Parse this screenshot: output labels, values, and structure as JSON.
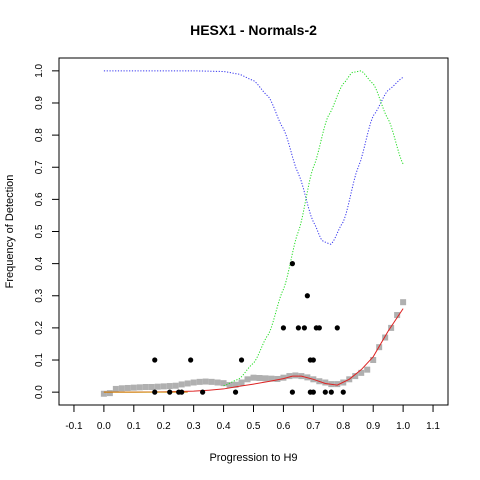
{
  "chart_data": {
    "type": "scatter",
    "title": "HESX1 - Normals-2",
    "xlabel": "Progression to H9",
    "ylabel": "Frequency of Detection",
    "xlim": [
      -0.15,
      1.15
    ],
    "ylim": [
      -0.04,
      1.04
    ],
    "xticks": [
      -0.1,
      0.0,
      0.1,
      0.2,
      0.3,
      0.4,
      0.5,
      0.6,
      0.7,
      0.8,
      0.9,
      1.0,
      1.1
    ],
    "xtick_labels": [
      "-0.1",
      "0.0",
      "0.1",
      "0.2",
      "0.3",
      "0.4",
      "0.5",
      "0.6",
      "0.7",
      "0.8",
      "0.9",
      "1.0",
      "1.1"
    ],
    "yticks": [
      0.0,
      0.1,
      0.2,
      0.3,
      0.4,
      0.5,
      0.6,
      0.7,
      0.8,
      0.9,
      1.0
    ],
    "ytick_labels": [
      "0.0",
      "0.1",
      "0.2",
      "0.3",
      "0.4",
      "0.5",
      "0.6",
      "0.7",
      "0.8",
      "0.9",
      "1.0"
    ],
    "grid": false,
    "legend": "none",
    "colors": {
      "points": "#000000",
      "smooth_points": "#b0b0b0",
      "fit_line": "#dd2222",
      "blue_curve": "#3333ee",
      "green_curve": "#22dd22",
      "orange_segment": "#cc8800"
    },
    "series": [
      {
        "kind": "points",
        "x": [
          0.17,
          0.17,
          0.22,
          0.25,
          0.26,
          0.29,
          0.33,
          0.44,
          0.46,
          0.6,
          0.63,
          0.63,
          0.65,
          0.67,
          0.68,
          0.69,
          0.69,
          0.7,
          0.7,
          0.71,
          0.72,
          0.74,
          0.76,
          0.78,
          0.8
        ],
        "y": [
          0.1,
          0.0,
          0.0,
          0.0,
          0.0,
          0.1,
          0.0,
          0.0,
          0.1,
          0.2,
          0.0,
          0.4,
          0.2,
          0.2,
          0.3,
          0.1,
          0.0,
          0.1,
          0.0,
          0.2,
          0.2,
          0.0,
          0.0,
          0.2,
          0.0
        ]
      },
      {
        "kind": "smooth_points",
        "x": [
          0.0,
          0.02,
          0.04,
          0.06,
          0.08,
          0.1,
          0.12,
          0.14,
          0.16,
          0.18,
          0.2,
          0.22,
          0.24,
          0.26,
          0.28,
          0.3,
          0.32,
          0.34,
          0.36,
          0.38,
          0.4,
          0.42,
          0.44,
          0.46,
          0.48,
          0.5,
          0.52,
          0.54,
          0.56,
          0.58,
          0.6,
          0.62,
          0.64,
          0.66,
          0.68,
          0.7,
          0.72,
          0.74,
          0.76,
          0.78,
          0.8,
          0.82,
          0.84,
          0.86,
          0.88,
          0.9,
          0.92,
          0.94,
          0.96,
          0.98,
          1.0
        ],
        "y": [
          -0.005,
          -0.003,
          0.01,
          0.012,
          0.013,
          0.014,
          0.015,
          0.016,
          0.016,
          0.017,
          0.018,
          0.019,
          0.02,
          0.024,
          0.027,
          0.03,
          0.032,
          0.033,
          0.032,
          0.03,
          0.028,
          0.022,
          0.023,
          0.03,
          0.04,
          0.045,
          0.044,
          0.043,
          0.042,
          0.041,
          0.045,
          0.05,
          0.052,
          0.05,
          0.046,
          0.04,
          0.034,
          0.03,
          0.025,
          0.025,
          0.03,
          0.04,
          0.05,
          0.06,
          0.07,
          0.1,
          0.14,
          0.17,
          0.2,
          0.24,
          0.28
        ]
      },
      {
        "kind": "fit_line",
        "x": [
          0.0,
          0.1,
          0.2,
          0.3,
          0.35,
          0.4,
          0.45,
          0.5,
          0.55,
          0.6,
          0.63,
          0.66,
          0.7,
          0.74,
          0.78,
          0.82,
          0.86,
          0.9,
          0.95,
          1.0
        ],
        "y": [
          0.0,
          0.0,
          0.001,
          0.003,
          0.006,
          0.01,
          0.018,
          0.025,
          0.033,
          0.042,
          0.05,
          0.05,
          0.04,
          0.027,
          0.022,
          0.04,
          0.07,
          0.11,
          0.19,
          0.26
        ]
      },
      {
        "kind": "blue_curve",
        "x": [
          0.0,
          0.1,
          0.2,
          0.3,
          0.4,
          0.45,
          0.5,
          0.55,
          0.6,
          0.65,
          0.7,
          0.73,
          0.76,
          0.8,
          0.85,
          0.9,
          0.95,
          1.0
        ],
        "y": [
          1.0,
          1.0,
          1.0,
          1.0,
          0.998,
          0.99,
          0.97,
          0.92,
          0.82,
          0.68,
          0.53,
          0.47,
          0.46,
          0.53,
          0.7,
          0.86,
          0.94,
          0.98
        ]
      },
      {
        "kind": "green_curve",
        "x": [
          0.4,
          0.45,
          0.5,
          0.55,
          0.6,
          0.65,
          0.7,
          0.75,
          0.8,
          0.83,
          0.86,
          0.9,
          0.95,
          1.0
        ],
        "y": [
          0.02,
          0.04,
          0.09,
          0.18,
          0.32,
          0.5,
          0.7,
          0.86,
          0.96,
          0.995,
          1.0,
          0.96,
          0.85,
          0.71
        ]
      },
      {
        "kind": "orange_segment",
        "x": [
          0.0,
          0.28
        ],
        "y": [
          0.0,
          0.0
        ]
      }
    ]
  }
}
